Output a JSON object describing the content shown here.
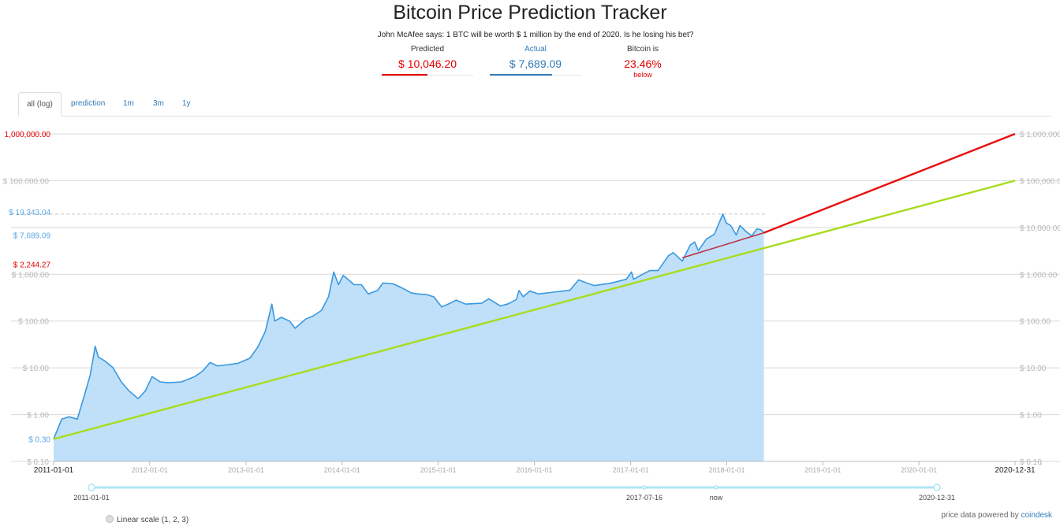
{
  "header": {
    "title": "Bitcoin Price Prediction Tracker",
    "subtitle": "John McAfee says: 1 BTC will be worth $ 1 million by the end of 2020. Is he losing his bet?"
  },
  "stats": {
    "predicted": {
      "label": "Predicted",
      "value": "$ 10,046.20",
      "color": "#e00000",
      "fill": 0.5
    },
    "actual": {
      "label": "Actual",
      "value": "$ 7,689.09",
      "color": "#337ab7",
      "fill": 0.68
    },
    "status": {
      "label": "Bitcoin is",
      "value": "23.46%",
      "sub": "below",
      "color": "#e00000"
    }
  },
  "tabs": [
    {
      "label": "all (log)",
      "active": true
    },
    {
      "label": "prediction",
      "active": false
    },
    {
      "label": "1m",
      "active": false
    },
    {
      "label": "3m",
      "active": false
    },
    {
      "label": "1y",
      "active": false
    }
  ],
  "chart_data": {
    "type": "line",
    "title": "",
    "xlabel": "",
    "ylabel": "",
    "yscale": "log",
    "xlim": [
      "2011-01-01",
      "2020-12-31"
    ],
    "ylim": [
      0.1,
      1000000
    ],
    "grid": true,
    "y_ticks_left": [
      "$ 100,000.00",
      "$ 1,000.00",
      "$ 100.00",
      "$ 10.00",
      "$ 1.00",
      "$ 0.10"
    ],
    "y_ticks_right": [
      "$ 1,000,000.00",
      "$ 100,000.00",
      "$ 10,000.00",
      "$ 1,000.00",
      "$ 100.00",
      "$ 10.00",
      "$ 1.00",
      "$ 0.10"
    ],
    "x_ticks": [
      "2011-01-01",
      "2012-01-01",
      "2013-01-01",
      "2014-01-01",
      "2015-01-01",
      "2016-01-01",
      "2017-01-01",
      "2018-01-01",
      "2019-01-01",
      "2020-01-01",
      "2020-12-31"
    ],
    "highlight_labels": [
      {
        "text": "1,000,000.00",
        "value": 1000000,
        "color": "#e00000"
      },
      {
        "text": "$ 19,343.04",
        "value": 19343.04,
        "color": "#5aa7e6"
      },
      {
        "text": "$ 7,689.09",
        "value": 7689.09,
        "color": "#5aa7e6"
      },
      {
        "text": "$ 2,244.27",
        "value": 2244.27,
        "color": "#e00000"
      },
      {
        "text": "$ 0.30",
        "value": 0.3,
        "color": "#5aa7e6"
      }
    ],
    "ath_line": 19343.04,
    "series": [
      {
        "kind": "area",
        "color": "#3a98e0",
        "fill": "#bfe0f8",
        "points": [
          [
            "2011-01-01",
            0.3
          ],
          [
            "2011-02-01",
            0.8
          ],
          [
            "2011-03-01",
            0.9
          ],
          [
            "2011-04-01",
            0.8
          ],
          [
            "2011-05-01",
            3.0
          ],
          [
            "2011-05-20",
            7.0
          ],
          [
            "2011-06-08",
            29.0
          ],
          [
            "2011-06-20",
            17.0
          ],
          [
            "2011-07-15",
            14.0
          ],
          [
            "2011-08-15",
            10.0
          ],
          [
            "2011-09-15",
            5.0
          ],
          [
            "2011-10-15",
            3.2
          ],
          [
            "2011-11-18",
            2.2
          ],
          [
            "2011-12-15",
            3.2
          ],
          [
            "2012-01-10",
            6.5
          ],
          [
            "2012-02-10",
            5.0
          ],
          [
            "2012-03-10",
            4.8
          ],
          [
            "2012-05-01",
            5.0
          ],
          [
            "2012-06-20",
            6.5
          ],
          [
            "2012-07-20",
            8.5
          ],
          [
            "2012-08-17",
            13.0
          ],
          [
            "2012-09-15",
            11.0
          ],
          [
            "2012-10-15",
            11.5
          ],
          [
            "2012-12-01",
            12.5
          ],
          [
            "2013-01-15",
            16.0
          ],
          [
            "2013-02-15",
            28.0
          ],
          [
            "2013-03-15",
            60.0
          ],
          [
            "2013-04-09",
            230.0
          ],
          [
            "2013-04-20",
            100.0
          ],
          [
            "2013-05-15",
            120.0
          ],
          [
            "2013-06-15",
            100.0
          ],
          [
            "2013-07-06",
            70.0
          ],
          [
            "2013-08-15",
            110.0
          ],
          [
            "2013-09-15",
            130.0
          ],
          [
            "2013-10-15",
            170.0
          ],
          [
            "2013-11-10",
            330.0
          ],
          [
            "2013-11-30",
            1120.0
          ],
          [
            "2013-12-18",
            600.0
          ],
          [
            "2014-01-05",
            950.0
          ],
          [
            "2014-02-15",
            600.0
          ],
          [
            "2014-03-15",
            600.0
          ],
          [
            "2014-04-10",
            380.0
          ],
          [
            "2014-05-15",
            450.0
          ],
          [
            "2014-06-05",
            650.0
          ],
          [
            "2014-07-15",
            620.0
          ],
          [
            "2014-08-20",
            500.0
          ],
          [
            "2014-09-20",
            400.0
          ],
          [
            "2014-10-15",
            380.0
          ],
          [
            "2014-11-15",
            370.0
          ],
          [
            "2014-12-15",
            330.0
          ],
          [
            "2015-01-14",
            200.0
          ],
          [
            "2015-02-15",
            240.0
          ],
          [
            "2015-03-10",
            280.0
          ],
          [
            "2015-04-15",
            230.0
          ],
          [
            "2015-06-15",
            240.0
          ],
          [
            "2015-07-12",
            300.0
          ],
          [
            "2015-08-25",
            210.0
          ],
          [
            "2015-09-25",
            235.0
          ],
          [
            "2015-10-25",
            290.0
          ],
          [
            "2015-11-04",
            450.0
          ],
          [
            "2015-11-20",
            330.0
          ],
          [
            "2015-12-15",
            440.0
          ],
          [
            "2016-01-15",
            380.0
          ],
          [
            "2016-03-15",
            415.0
          ],
          [
            "2016-05-15",
            455.0
          ],
          [
            "2016-06-17",
            760.0
          ],
          [
            "2016-07-15",
            660.0
          ],
          [
            "2016-08-15",
            575.0
          ],
          [
            "2016-10-15",
            640.0
          ],
          [
            "2016-12-15",
            780.0
          ],
          [
            "2017-01-04",
            1120.0
          ],
          [
            "2017-01-12",
            780.0
          ],
          [
            "2017-02-15",
            1000.0
          ],
          [
            "2017-03-15",
            1200.0
          ],
          [
            "2017-04-15",
            1200.0
          ],
          [
            "2017-05-25",
            2500.0
          ],
          [
            "2017-06-12",
            2900.0
          ],
          [
            "2017-07-16",
            1900.0
          ],
          [
            "2017-08-15",
            4200.0
          ],
          [
            "2017-09-01",
            4900.0
          ],
          [
            "2017-09-15",
            3200.0
          ],
          [
            "2017-10-15",
            5600.0
          ],
          [
            "2017-11-15",
            7200.0
          ],
          [
            "2017-12-17",
            19343.04
          ],
          [
            "2017-12-30",
            12500.0
          ],
          [
            "2018-01-16",
            11000.0
          ],
          [
            "2018-02-06",
            6900.0
          ],
          [
            "2018-02-20",
            11000.0
          ],
          [
            "2018-03-15",
            8200.0
          ],
          [
            "2018-04-06",
            6600.0
          ],
          [
            "2018-04-25",
            9300.0
          ],
          [
            "2018-05-10",
            9000.0
          ],
          [
            "2018-05-22",
            7689.09
          ]
        ]
      },
      {
        "kind": "line",
        "color": "#a8dc1c",
        "points": [
          [
            "2011-01-01",
            0.3
          ],
          [
            "2020-12-31",
            100000.0
          ]
        ]
      },
      {
        "kind": "line",
        "color": "#c0304a",
        "points": [
          [
            "2017-07-16",
            2244.27
          ],
          [
            "2018-05-22",
            7689.09
          ]
        ]
      },
      {
        "kind": "line",
        "color": "#e81010",
        "points": [
          [
            "2018-05-22",
            7689.09
          ],
          [
            "2020-12-31",
            1000000.0
          ]
        ]
      }
    ]
  },
  "slider": {
    "labels": [
      "2011-01-01",
      "2017-07-16",
      "now",
      "2020-12-31"
    ],
    "label_dates": [
      "2011-01-01",
      "2017-07-16",
      "2018-05-22",
      "2020-12-31"
    ],
    "color": "#aee6f2"
  },
  "footer": {
    "linear_label": "Linear scale (1, 2, 3)",
    "powered_text": "price data powered by",
    "powered_brand": "coindesk"
  }
}
